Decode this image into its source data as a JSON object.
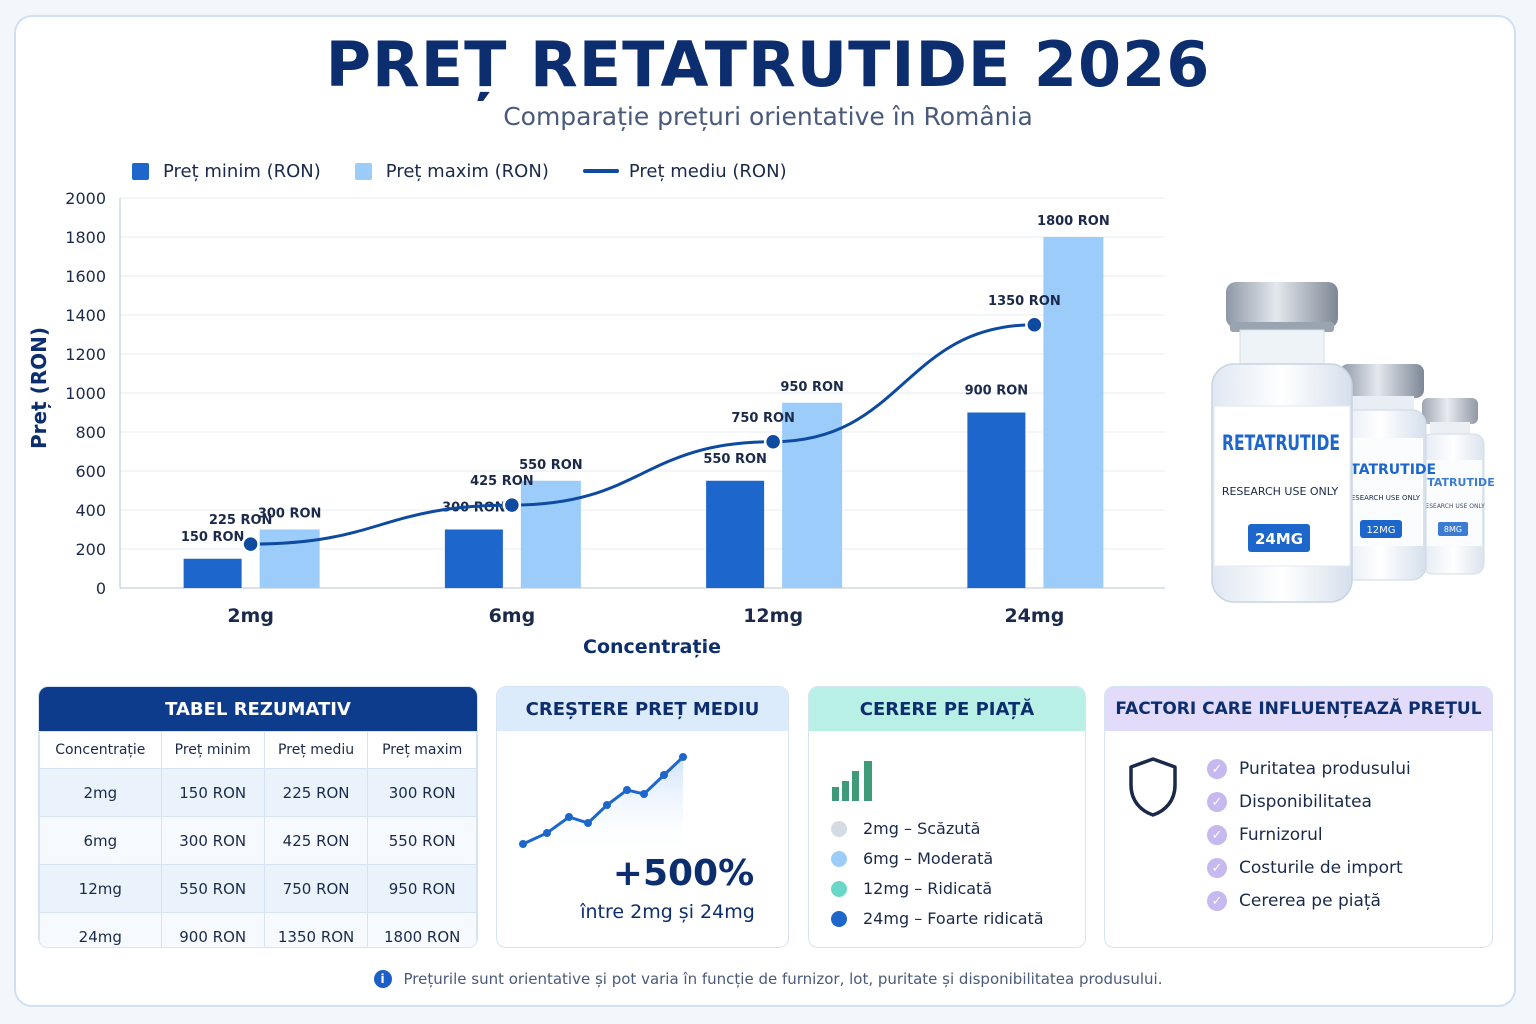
{
  "title": "PREȚ RETATRUTIDE 2026",
  "subtitle": "Comparație prețuri orientative în România",
  "colors": {
    "min": "#1c66cc",
    "max": "#9ccdfa",
    "avg": "#0d4aa0",
    "navy": "#0d2e6e"
  },
  "legend": {
    "min": "Preț minim (RON)",
    "max": "Preț maxim (RON)",
    "avg": "Preț mediu (RON)"
  },
  "chart_data": {
    "type": "bar",
    "categories": [
      "2mg",
      "6mg",
      "12mg",
      "24mg"
    ],
    "series": [
      {
        "name": "Preț minim (RON)",
        "type": "bar",
        "values": [
          150,
          300,
          550,
          900
        ],
        "labels": [
          "150 RON",
          "300 RON",
          "550 RON",
          "900 RON"
        ]
      },
      {
        "name": "Preț maxim (RON)",
        "type": "bar",
        "values": [
          300,
          550,
          950,
          1800
        ],
        "labels": [
          "300 RON",
          "550 RON",
          "950 RON",
          "1800 RON"
        ]
      },
      {
        "name": "Preț mediu (RON)",
        "type": "line",
        "values": [
          225,
          425,
          750,
          1350
        ],
        "labels": [
          "225 RON",
          "425 RON",
          "750 RON",
          "1350 RON"
        ]
      }
    ],
    "yticks": [
      "0",
      "200",
      "400",
      "600",
      "800",
      "1000",
      "1200",
      "1400",
      "1600",
      "1800",
      "2000"
    ],
    "ylim": [
      0,
      2000
    ],
    "xlabel": "Concentrație",
    "ylabel": "Preț (RON)",
    "grid": true,
    "legend_position": "top-left"
  },
  "vials": {
    "name": "RETATRUTIDE",
    "note": "RESEARCH USE ONLY",
    "doses": [
      "24MG",
      "12MG",
      "8MG"
    ]
  },
  "summary": {
    "title": "TABEL REZUMATIV",
    "headers": [
      "Concentrație",
      "Preț minim",
      "Preț mediu",
      "Preț maxim"
    ],
    "rows": [
      [
        "2mg",
        "150 RON",
        "225 RON",
        "300 RON"
      ],
      [
        "6mg",
        "300 RON",
        "425 RON",
        "550 RON"
      ],
      [
        "12mg",
        "550 RON",
        "750 RON",
        "950 RON"
      ],
      [
        "24mg",
        "900 RON",
        "1350 RON",
        "1800 RON"
      ]
    ]
  },
  "growth": {
    "title": "CREȘTERE PREȚ MEDIU",
    "value": "+500%",
    "caption": "între 2mg și 24mg"
  },
  "demand": {
    "title": "CERERE PE PIAȚĂ",
    "items": [
      {
        "label": "2mg – Scăzută",
        "color": "#d5dbe3"
      },
      {
        "label": "6mg – Moderată",
        "color": "#9ccdfa"
      },
      {
        "label": "12mg – Ridicată",
        "color": "#6ad8c8"
      },
      {
        "label": "24mg – Foarte ridicată",
        "color": "#1c66cc"
      }
    ]
  },
  "factors": {
    "title": "FACTORI CARE INFLUENȚEAZĂ PREȚUL",
    "items": [
      "Puritatea produsului",
      "Disponibilitatea",
      "Furnizorul",
      "Costurile de import",
      "Cererea pe piață"
    ]
  },
  "footnote": "Prețurile sunt orientative și pot varia în funcție de furnizor, lot, puritate și disponibilitatea produsului."
}
